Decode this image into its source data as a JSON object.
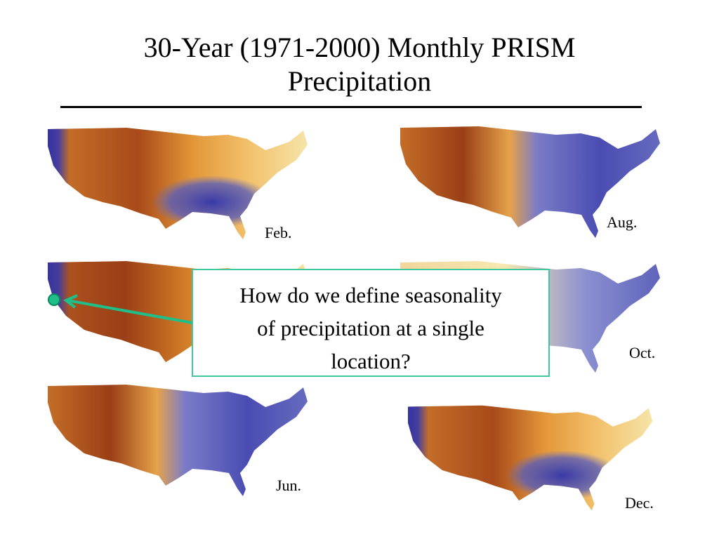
{
  "slide": {
    "title_line1": "30-Year (1971-2000) Monthly PRISM",
    "title_line2": "Precipitation"
  },
  "maps": [
    {
      "id": "feb",
      "label": "Feb.",
      "palette": "dry-west-wet-southeast"
    },
    {
      "id": "apr",
      "label": "",
      "palette": "dry-west"
    },
    {
      "id": "jun",
      "label": "Jun.",
      "palette": "dry-west-wet-east"
    },
    {
      "id": "aug",
      "label": "Aug.",
      "palette": "dry-west-wet-east"
    },
    {
      "id": "oct",
      "label": "Oct.",
      "palette": "mixed-east"
    },
    {
      "id": "dec",
      "label": "Dec.",
      "palette": "dry-west-wet-southeast"
    }
  ],
  "callout": {
    "line1": "How do we define seasonality",
    "line2": "of precipitation at a single",
    "line3": "location?"
  },
  "colors": {
    "dry_dark": "#9a3f16",
    "dry": "#d8842a",
    "mid": "#f2c06a",
    "pale": "#f6e9b0",
    "wet": "#6a6fc0",
    "wet_dark": "#3a3aa8",
    "callout_border": "#3fc7a0",
    "arrow": "#1fbf8a"
  }
}
